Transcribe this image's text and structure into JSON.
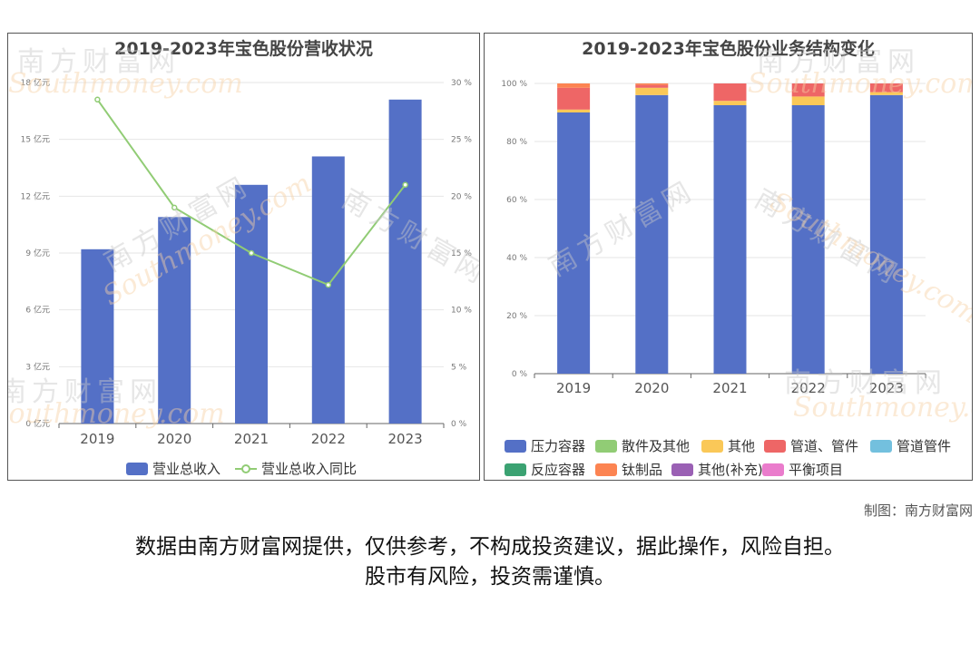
{
  "chart_data": [
    {
      "type": "bar+line",
      "title": "2019-2023年宝色股份营收状况",
      "categories": [
        "2019",
        "2020",
        "2021",
        "2022",
        "2023"
      ],
      "series": [
        {
          "name": "营业总收入",
          "type": "bar",
          "axis": "left",
          "values": [
            9.2,
            10.9,
            12.6,
            14.1,
            17.1
          ]
        },
        {
          "name": "营业总收入同比",
          "type": "line",
          "axis": "right",
          "values": [
            28.5,
            19.0,
            15.0,
            12.2,
            21.0
          ]
        }
      ],
      "y_left": {
        "ticks": [
          "0 亿元",
          "3 亿元",
          "6 亿元",
          "9 亿元",
          "12 亿元",
          "15 亿元",
          "18 亿元"
        ],
        "ylim": [
          0,
          18
        ]
      },
      "y_right": {
        "ticks": [
          "0 %",
          "5 %",
          "10 %",
          "15 %",
          "20 %",
          "25 %",
          "30 %"
        ],
        "ylim": [
          0,
          30
        ]
      },
      "grid": true,
      "legend": "bottom"
    },
    {
      "type": "stacked-bar",
      "title": "2019-2023年宝色股份业务结构变化",
      "categories": [
        "2019",
        "2020",
        "2021",
        "2022",
        "2023"
      ],
      "series": [
        {
          "name": "压力容器",
          "values": [
            90.0,
            96.0,
            92.5,
            92.5,
            96.0
          ]
        },
        {
          "name": "散件及其他",
          "values": [
            0,
            0,
            0,
            0,
            0
          ]
        },
        {
          "name": "其他",
          "values": [
            1.0,
            2.5,
            1.5,
            3.0,
            1.0
          ]
        },
        {
          "name": "管道、管件",
          "values": [
            7.5,
            1.0,
            6.0,
            4.5,
            3.0
          ]
        },
        {
          "name": "管道管件",
          "values": [
            0,
            0,
            0,
            0,
            0
          ]
        },
        {
          "name": "反应容器",
          "values": [
            0,
            0,
            0,
            0,
            0
          ]
        },
        {
          "name": "钛制品",
          "values": [
            1.5,
            0.5,
            0,
            0,
            0
          ]
        },
        {
          "name": "其他(补充)",
          "values": [
            0,
            0,
            0,
            0,
            0
          ]
        },
        {
          "name": "平衡项目",
          "values": [
            0,
            0,
            0,
            0,
            0
          ]
        }
      ],
      "y": {
        "ticks": [
          "0 %",
          "20 %",
          "40 %",
          "60 %",
          "80 %",
          "100 %"
        ],
        "ylim": [
          0,
          100
        ]
      },
      "grid": true,
      "legend": "bottom"
    }
  ],
  "colors": {
    "bar_blue": "#5470c6",
    "line_green": "#91cc75",
    "series": [
      "#5470c6",
      "#91cc75",
      "#fac858",
      "#ee6666",
      "#73c0de",
      "#3ba272",
      "#fc8452",
      "#9a60b4",
      "#ea7ccc"
    ]
  },
  "watermark": {
    "cn": "南方财富网",
    "en": "Southmoney.com"
  },
  "credit": "制图：南方财富网",
  "disclaimer": [
    "数据由南方财富网提供，仅供参考，不构成投资建议，据此操作，风险自担。",
    "股市有风险，投资需谨慎。"
  ]
}
